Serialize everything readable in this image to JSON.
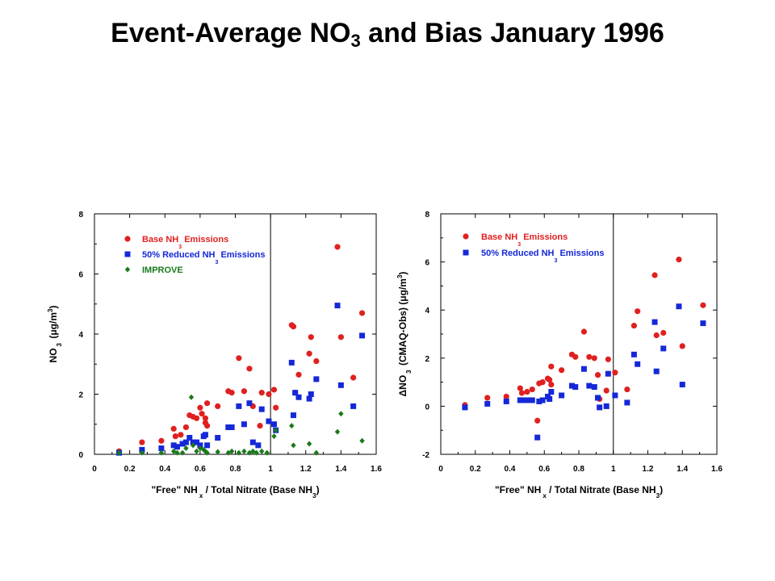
{
  "slide": {
    "title_main": "Event-Average NO",
    "title_sub": "3",
    "title_rest": " and Bias January 1996"
  },
  "colors": {
    "base": "#e02020",
    "reduced": "#1428d8",
    "improve": "#1a7a1a"
  },
  "chart_data": [
    {
      "type": "scatter",
      "xlabel": {
        "main": "\"Free\" NH",
        "sub": "x",
        "rest": " / Total Nitrate (Base NH",
        "sub2": "3",
        "end": ")"
      },
      "ylabel": {
        "main": "NO",
        "sub": "3",
        "rest": " (μg/m",
        "sup": "3",
        "end": ")"
      },
      "xlim": [
        0,
        1.6
      ],
      "ylim": [
        0,
        8
      ],
      "xticks": [
        "0",
        "0.2",
        "0.4",
        "0.6",
        "0.8",
        "1",
        "1.2",
        "1.4",
        "1.6"
      ],
      "yticks": [
        "0",
        "2",
        "4",
        "6",
        "8"
      ],
      "vline": 1.0,
      "legend": [
        {
          "label_main": "Base NH",
          "label_sub": "3",
          "label_rest": " Emissions",
          "series": "base"
        },
        {
          "label_main": "50% Reduced NH",
          "label_sub": "3",
          "label_rest": " Emissions",
          "series": "reduced"
        },
        {
          "label_main": "IMPROVE",
          "label_sub": "",
          "label_rest": "",
          "series": "improve"
        }
      ],
      "series": [
        {
          "key": "base",
          "name": "Base NH3 Emissions",
          "marker": "circle",
          "points": [
            [
              0.14,
              0.1
            ],
            [
              0.27,
              0.4
            ],
            [
              0.38,
              0.45
            ],
            [
              0.45,
              0.85
            ],
            [
              0.46,
              0.6
            ],
            [
              0.49,
              0.65
            ],
            [
              0.52,
              0.9
            ],
            [
              0.54,
              1.3
            ],
            [
              0.56,
              1.25
            ],
            [
              0.58,
              1.2
            ],
            [
              0.6,
              1.55
            ],
            [
              0.61,
              1.35
            ],
            [
              0.63,
              1.2
            ],
            [
              0.63,
              1.05
            ],
            [
              0.64,
              1.7
            ],
            [
              0.64,
              0.95
            ],
            [
              0.7,
              1.6
            ],
            [
              0.76,
              2.1
            ],
            [
              0.78,
              2.05
            ],
            [
              0.82,
              3.2
            ],
            [
              0.85,
              2.1
            ],
            [
              0.88,
              2.85
            ],
            [
              0.9,
              1.6
            ],
            [
              0.94,
              0.95
            ],
            [
              0.95,
              2.05
            ],
            [
              0.99,
              2.0
            ],
            [
              1.02,
              2.15
            ],
            [
              1.03,
              1.55
            ],
            [
              1.12,
              4.3
            ],
            [
              1.13,
              4.25
            ],
            [
              1.14,
              2.05
            ],
            [
              1.16,
              2.65
            ],
            [
              1.22,
              3.35
            ],
            [
              1.23,
              3.9
            ],
            [
              1.26,
              3.1
            ],
            [
              1.38,
              6.9
            ],
            [
              1.4,
              3.9
            ],
            [
              1.47,
              2.55
            ],
            [
              1.52,
              4.7
            ]
          ]
        },
        {
          "key": "reduced",
          "name": "50% Reduced NH3 Emissions",
          "marker": "square",
          "points": [
            [
              0.14,
              0.05
            ],
            [
              0.27,
              0.15
            ],
            [
              0.38,
              0.2
            ],
            [
              0.45,
              0.3
            ],
            [
              0.47,
              0.25
            ],
            [
              0.5,
              0.35
            ],
            [
              0.52,
              0.4
            ],
            [
              0.54,
              0.55
            ],
            [
              0.56,
              0.4
            ],
            [
              0.58,
              0.4
            ],
            [
              0.6,
              0.3
            ],
            [
              0.62,
              0.6
            ],
            [
              0.63,
              0.65
            ],
            [
              0.64,
              0.3
            ],
            [
              0.7,
              0.55
            ],
            [
              0.76,
              0.9
            ],
            [
              0.78,
              0.9
            ],
            [
              0.82,
              1.6
            ],
            [
              0.85,
              1.0
            ],
            [
              0.88,
              1.7
            ],
            [
              0.9,
              0.4
            ],
            [
              0.93,
              0.3
            ],
            [
              0.95,
              1.5
            ],
            [
              0.99,
              1.1
            ],
            [
              1.02,
              1.0
            ],
            [
              1.03,
              0.8
            ],
            [
              1.12,
              3.05
            ],
            [
              1.13,
              1.3
            ],
            [
              1.14,
              2.05
            ],
            [
              1.16,
              1.9
            ],
            [
              1.22,
              1.85
            ],
            [
              1.23,
              2.0
            ],
            [
              1.26,
              2.5
            ],
            [
              1.38,
              4.95
            ],
            [
              1.4,
              2.3
            ],
            [
              1.47,
              1.6
            ],
            [
              1.52,
              3.95
            ]
          ]
        },
        {
          "key": "improve",
          "name": "IMPROVE",
          "marker": "diamond",
          "points": [
            [
              0.14,
              0.05
            ],
            [
              0.27,
              0.05
            ],
            [
              0.38,
              0.05
            ],
            [
              0.45,
              0.1
            ],
            [
              0.47,
              0.05
            ],
            [
              0.5,
              0.05
            ],
            [
              0.52,
              0.2
            ],
            [
              0.55,
              1.9
            ],
            [
              0.56,
              0.3
            ],
            [
              0.58,
              0.1
            ],
            [
              0.6,
              0.2
            ],
            [
              0.62,
              0.15
            ],
            [
              0.63,
              0.1
            ],
            [
              0.64,
              0.05
            ],
            [
              0.7,
              0.08
            ],
            [
              0.76,
              0.05
            ],
            [
              0.78,
              0.1
            ],
            [
              0.82,
              0.05
            ],
            [
              0.85,
              0.1
            ],
            [
              0.88,
              0.05
            ],
            [
              0.9,
              0.1
            ],
            [
              0.92,
              0.05
            ],
            [
              0.95,
              0.1
            ],
            [
              0.98,
              0.05
            ],
            [
              1.02,
              0.6
            ],
            [
              1.03,
              0.8
            ],
            [
              1.12,
              0.95
            ],
            [
              1.13,
              0.3
            ],
            [
              1.22,
              0.35
            ],
            [
              1.26,
              0.05
            ],
            [
              1.38,
              0.75
            ],
            [
              1.4,
              1.35
            ],
            [
              1.52,
              0.45
            ]
          ]
        }
      ]
    },
    {
      "type": "scatter",
      "xlabel": {
        "main": "\"Free\" NH",
        "sub": "x",
        "rest": " / Total Nitrate (Base NH",
        "sub2": "3",
        "end": ")"
      },
      "ylabel": {
        "main": "ΔNO",
        "sub": "3",
        "rest": " (CMAQ-Obs) (μg/m",
        "sup": "3",
        "end": ")"
      },
      "xlim": [
        0,
        1.6
      ],
      "ylim": [
        -2,
        8
      ],
      "xticks": [
        "0",
        "0.2",
        "0.4",
        "0.6",
        "0.8",
        "1",
        "1.2",
        "1.4",
        "1.6"
      ],
      "yticks": [
        "-2",
        "0",
        "2",
        "4",
        "6",
        "8"
      ],
      "vline": 1.0,
      "legend": [
        {
          "label_main": "Base NH",
          "label_sub": "3",
          "label_rest": " Emissions",
          "series": "base"
        },
        {
          "label_main": "50% Reduced NH",
          "label_sub": "3",
          "label_rest": " Emissions",
          "series": "reduced"
        }
      ],
      "series": [
        {
          "key": "base",
          "name": "Base NH3 Emissions",
          "marker": "circle",
          "points": [
            [
              0.14,
              0.05
            ],
            [
              0.27,
              0.35
            ],
            [
              0.38,
              0.4
            ],
            [
              0.46,
              0.75
            ],
            [
              0.47,
              0.55
            ],
            [
              0.5,
              0.6
            ],
            [
              0.53,
              0.7
            ],
            [
              0.56,
              -0.6
            ],
            [
              0.57,
              0.95
            ],
            [
              0.59,
              1.0
            ],
            [
              0.62,
              1.15
            ],
            [
              0.63,
              1.1
            ],
            [
              0.64,
              1.65
            ],
            [
              0.64,
              0.9
            ],
            [
              0.7,
              1.5
            ],
            [
              0.76,
              2.15
            ],
            [
              0.78,
              2.05
            ],
            [
              0.83,
              3.1
            ],
            [
              0.86,
              2.05
            ],
            [
              0.89,
              2.0
            ],
            [
              0.91,
              1.3
            ],
            [
              0.92,
              0.3
            ],
            [
              0.96,
              0.65
            ],
            [
              0.97,
              1.95
            ],
            [
              1.01,
              1.4
            ],
            [
              1.08,
              0.7
            ],
            [
              1.12,
              3.35
            ],
            [
              1.14,
              3.95
            ],
            [
              1.24,
              5.45
            ],
            [
              1.25,
              2.95
            ],
            [
              1.29,
              3.05
            ],
            [
              1.38,
              6.1
            ],
            [
              1.4,
              2.5
            ],
            [
              1.52,
              4.2
            ]
          ]
        },
        {
          "key": "reduced",
          "name": "50% Reduced NH3 Emissions",
          "marker": "square",
          "points": [
            [
              0.14,
              -0.05
            ],
            [
              0.27,
              0.1
            ],
            [
              0.38,
              0.2
            ],
            [
              0.46,
              0.25
            ],
            [
              0.47,
              0.25
            ],
            [
              0.5,
              0.25
            ],
            [
              0.53,
              0.25
            ],
            [
              0.56,
              -1.3
            ],
            [
              0.57,
              0.2
            ],
            [
              0.59,
              0.25
            ],
            [
              0.62,
              0.4
            ],
            [
              0.63,
              0.3
            ],
            [
              0.64,
              0.6
            ],
            [
              0.7,
              0.45
            ],
            [
              0.76,
              0.85
            ],
            [
              0.78,
              0.8
            ],
            [
              0.83,
              1.55
            ],
            [
              0.86,
              0.85
            ],
            [
              0.89,
              0.8
            ],
            [
              0.91,
              0.35
            ],
            [
              0.92,
              -0.05
            ],
            [
              0.96,
              0.0
            ],
            [
              0.97,
              1.35
            ],
            [
              1.01,
              0.45
            ],
            [
              1.08,
              0.15
            ],
            [
              1.12,
              2.15
            ],
            [
              1.14,
              1.75
            ],
            [
              1.24,
              3.5
            ],
            [
              1.25,
              1.45
            ],
            [
              1.29,
              2.4
            ],
            [
              1.38,
              4.15
            ],
            [
              1.4,
              0.9
            ],
            [
              1.52,
              3.45
            ]
          ]
        }
      ]
    }
  ]
}
